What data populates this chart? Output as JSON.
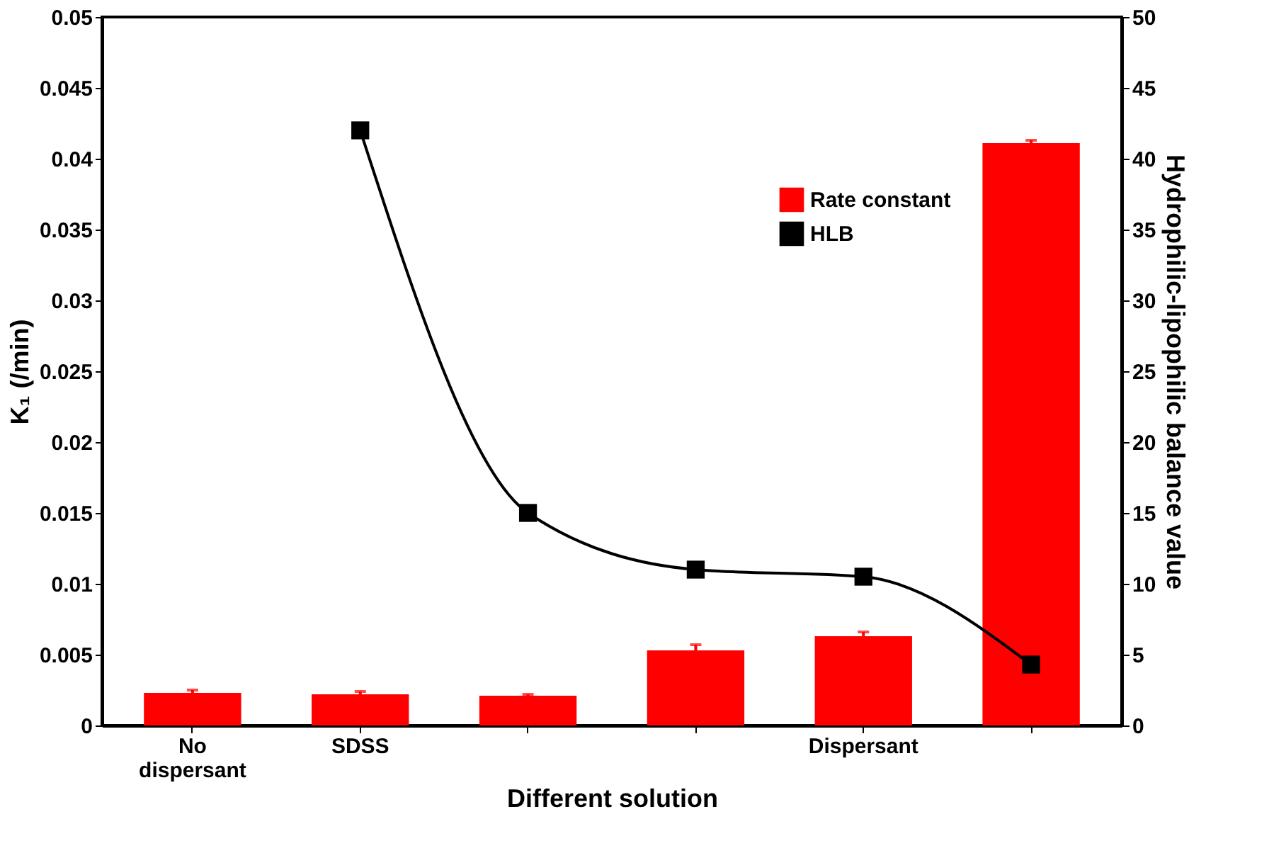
{
  "chart_data": {
    "type": "bar",
    "xlabel": "Different solution",
    "ylabel": "K₁ (/min)",
    "y2label": "Hydrophilic-lipophilic balance value",
    "categories": [
      "No dispersant",
      "SDSS",
      null,
      null,
      "Dispersant",
      null
    ],
    "series": [
      {
        "name": "Rate constant",
        "color": "#ff0000",
        "values": [
          0.0023,
          0.0022,
          0.0021,
          0.0053,
          0.0063,
          0.0411
        ],
        "errors": [
          0.0002,
          0.0002,
          0.0001,
          0.0004,
          0.0003,
          0.0002
        ]
      },
      {
        "name": "HLB",
        "type": "line",
        "axis": "y2",
        "color": "#000000",
        "marker": "square",
        "values": [
          null,
          42,
          15,
          11,
          10.5,
          4.3
        ]
      }
    ],
    "ylim": [
      0,
      0.05
    ],
    "yticks": [
      0,
      0.005,
      0.01,
      0.015,
      0.02,
      0.025,
      0.03,
      0.035,
      0.04,
      0.045,
      0.05
    ],
    "y2lim": [
      0,
      50
    ],
    "y2ticks": [
      0,
      5,
      10,
      15,
      20,
      25,
      30,
      35,
      40,
      45,
      50
    ],
    "legend": "top right",
    "grid": false
  }
}
